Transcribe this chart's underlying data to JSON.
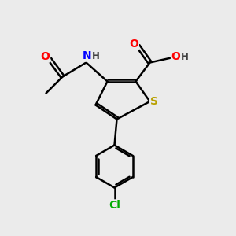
{
  "background_color": "#ebebeb",
  "atom_colors": {
    "S": "#b8a000",
    "N": "#0000ff",
    "O": "#ff0000",
    "Cl": "#00aa00",
    "C": "#000000",
    "H": "#404040"
  },
  "bond_color": "#000000",
  "bond_width": 1.8,
  "font_size_atom": 10,
  "font_size_small": 8.5,
  "xlim": [
    0,
    10
  ],
  "ylim": [
    0,
    10
  ]
}
